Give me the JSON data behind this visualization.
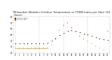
{
  "title": "Milwaukee Weather Outdoor Temperature vs THSW Index per Hour (24 Hours)",
  "title_fontsize": 2.8,
  "background_color": "#ffffff",
  "plot_bg_color": "#ffffff",
  "grid_color": "#bbbbbb",
  "temp_data": [
    [
      0,
      36
    ],
    [
      1,
      36
    ],
    [
      2,
      36
    ],
    [
      3,
      36
    ],
    [
      4,
      36
    ],
    [
      5,
      36
    ],
    [
      6,
      36
    ],
    [
      7,
      36
    ],
    [
      8,
      37
    ],
    [
      9,
      40
    ],
    [
      10,
      44
    ],
    [
      11,
      49
    ],
    [
      12,
      53
    ],
    [
      13,
      56
    ],
    [
      14,
      57
    ],
    [
      15,
      56
    ],
    [
      16,
      54
    ],
    [
      17,
      52
    ],
    [
      18,
      50
    ],
    [
      19,
      48
    ],
    [
      20,
      46
    ],
    [
      21,
      44
    ],
    [
      22,
      42
    ],
    [
      23,
      41
    ]
  ],
  "thsw_data": [
    [
      0,
      28
    ],
    [
      1,
      28
    ],
    [
      2,
      28
    ],
    [
      3,
      28
    ],
    [
      4,
      28
    ],
    [
      5,
      28
    ],
    [
      6,
      28
    ],
    [
      7,
      28
    ],
    [
      8,
      29
    ],
    [
      9,
      33
    ],
    [
      10,
      44
    ],
    [
      11,
      58
    ],
    [
      12,
      66
    ],
    [
      13,
      70
    ],
    [
      14,
      62
    ],
    [
      15,
      55
    ],
    [
      16,
      48
    ],
    [
      17,
      43
    ],
    [
      18,
      39
    ],
    [
      19,
      35
    ],
    [
      20,
      31
    ],
    [
      21,
      28
    ],
    [
      22,
      25
    ],
    [
      23,
      56
    ]
  ],
  "temp_color": "#000000",
  "thsw_colors_by_val": {
    "high": "#ff0000",
    "mid": "#ff4400",
    "low": "#ff8800"
  },
  "thsw_high_thresh": 60,
  "thsw_mid_thresh": 40,
  "ylim": [
    20,
    80
  ],
  "yticks": [
    20,
    30,
    40,
    50,
    60,
    70,
    80
  ],
  "xlim": [
    -0.5,
    23.5
  ],
  "xticks": [
    0,
    1,
    2,
    3,
    4,
    5,
    6,
    7,
    8,
    9,
    10,
    11,
    12,
    13,
    14,
    15,
    16,
    17,
    18,
    19,
    20,
    21,
    22,
    23
  ],
  "vgrid_hours": [
    0,
    6,
    12,
    18
  ],
  "orange_line_y": 28,
  "orange_line_x0": 0,
  "orange_line_x1": 8,
  "legend_temp": "Outdoor Temp",
  "legend_thsw": "THSW Index",
  "marker_size_temp": 0.8,
  "marker_size_thsw": 0.8
}
